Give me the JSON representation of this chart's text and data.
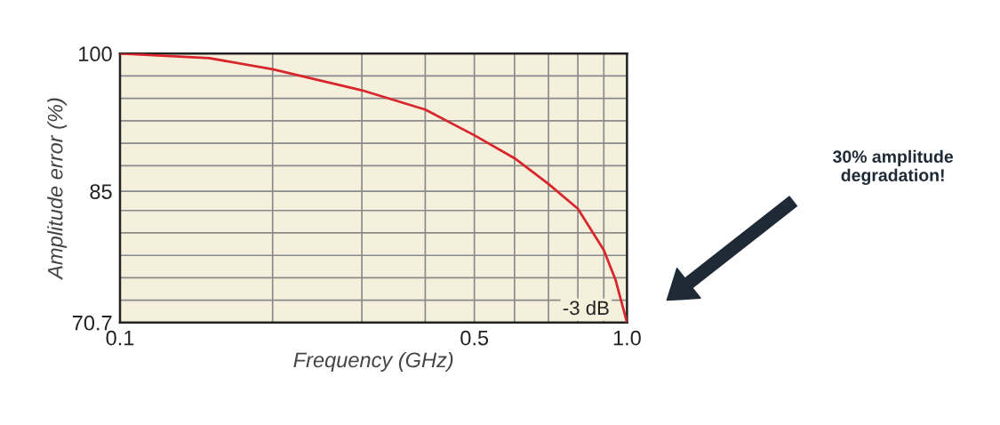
{
  "chart_data": {
    "type": "line",
    "xlabel": "Frequency (GHz)",
    "ylabel": "Amplitude error (%)",
    "log": "x",
    "x": [
      0.1,
      0.15,
      0.2,
      0.3,
      0.4,
      0.5,
      0.6,
      0.7,
      0.8,
      0.9,
      0.95,
      1.0
    ],
    "series": [
      {
        "color": "#d9262c",
        "values": [
          100,
          99.5,
          98.3,
          96.0,
          93.9,
          91.1,
          88.6,
          85.8,
          83.1,
          78.6,
          75.3,
          70.7
        ]
      }
    ],
    "xlim": [
      0.1,
      1.0
    ],
    "xticks": [
      0.1,
      {
        "value": 0.2,
        "label": null
      },
      {
        "value": 0.3,
        "label": null
      },
      {
        "value": 0.4,
        "label": null
      },
      0.5,
      {
        "value": 0.6,
        "label": null
      },
      {
        "value": 0.7,
        "label": null
      },
      {
        "value": 0.8,
        "label": null
      },
      {
        "value": 0.9,
        "label": null
      },
      {
        "value": 1.0,
        "label": "1.0"
      }
    ],
    "ylim": [
      70.7,
      100
    ],
    "yticks": [
      70.7,
      {
        "value": 73.14,
        "label": null
      },
      {
        "value": 75.58,
        "label": null
      },
      {
        "value": 78.02,
        "label": null
      },
      {
        "value": 80.47,
        "label": null
      },
      {
        "value": 82.91,
        "label": null
      },
      85,
      {
        "value": 87.79,
        "label": null
      },
      {
        "value": 90.23,
        "label": null
      },
      {
        "value": 92.67,
        "label": null
      },
      {
        "value": 95.12,
        "label": null
      },
      {
        "value": 97.56,
        "label": null
      },
      100
    ],
    "grid": true,
    "marker": "none",
    "line_style": "solid",
    "annotations": [
      {
        "text": "-3 dB",
        "x": 1.0,
        "y": 70.7
      },
      "30% amplitude\ndegradation!"
    ]
  }
}
